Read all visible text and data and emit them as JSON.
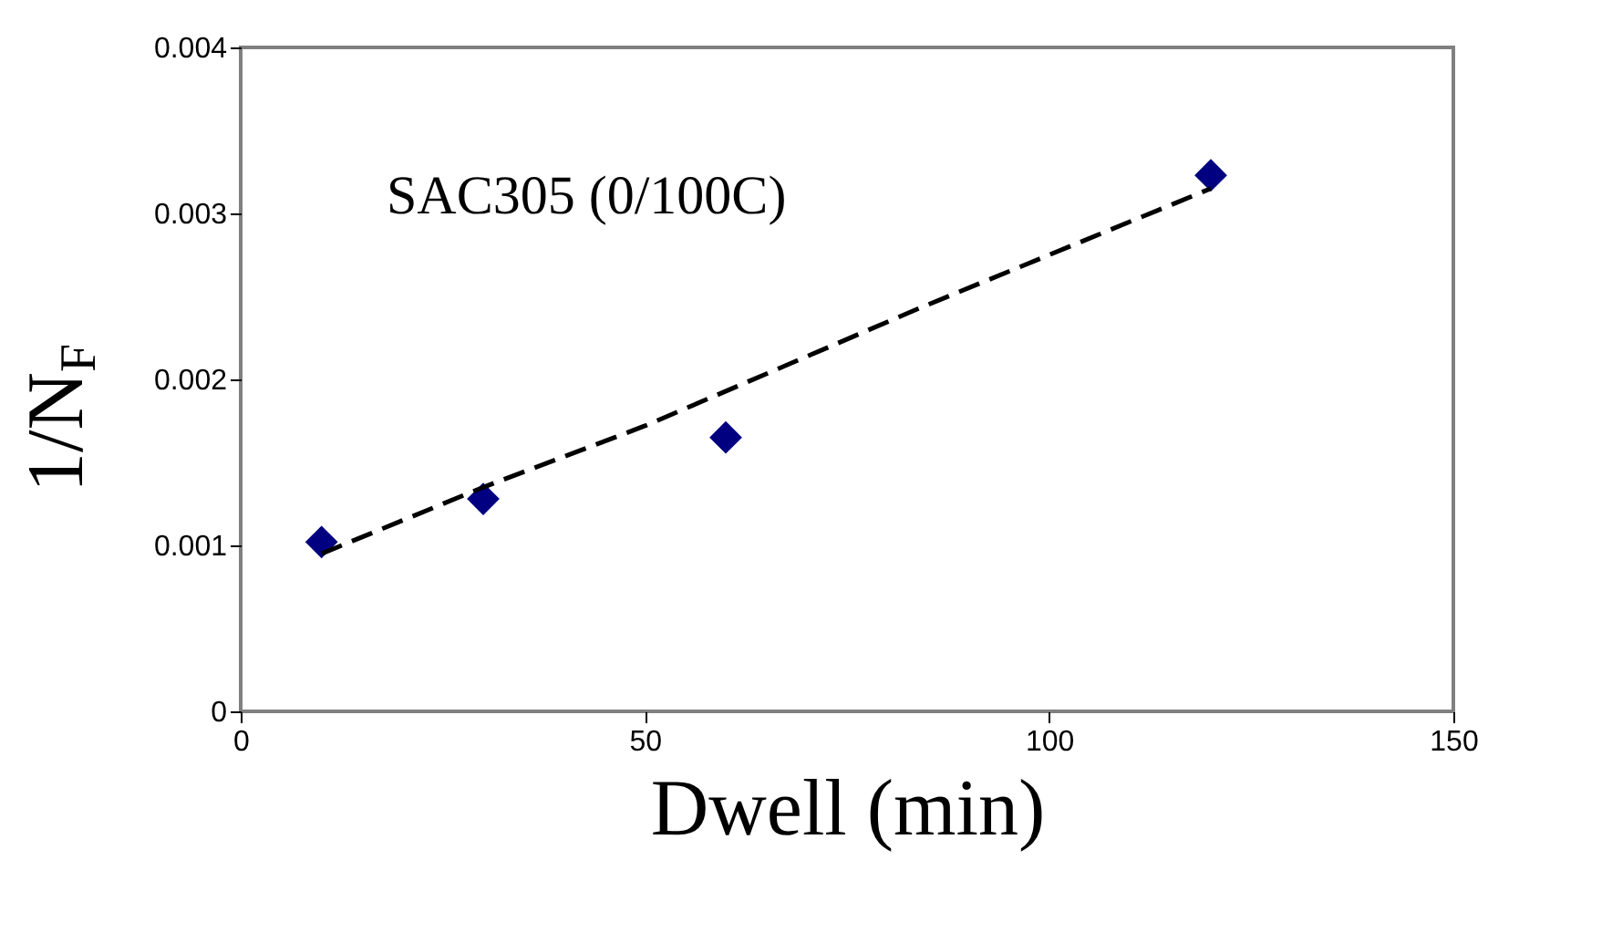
{
  "chart_data": {
    "type": "scatter",
    "xlabel": "Dwell (min)",
    "ylabel": "1/N$_{F}$",
    "annotations": [
      "SAC305 (0/100C)"
    ],
    "xlim": [
      0,
      150
    ],
    "xticks": [
      0,
      50,
      100,
      150
    ],
    "ylim": [
      0,
      0.004
    ],
    "yticks": [
      0,
      0.001,
      0.002,
      0.003,
      0.004
    ],
    "grid": false,
    "series": [
      {
        "color": "#000080",
        "marker": "diamond",
        "x": [
          10,
          30,
          60,
          120
        ],
        "values": [
          0.00102,
          0.00128,
          0.00165,
          0.00323
        ]
      },
      {
        "type": "line",
        "color": "#000000",
        "line_style": "dashed",
        "marker": "none",
        "x": [
          10,
          30,
          50,
          84,
          120
        ],
        "values": [
          0.00095,
          0.00135,
          0.00172,
          0.00243,
          0.00315
        ]
      }
    ]
  }
}
